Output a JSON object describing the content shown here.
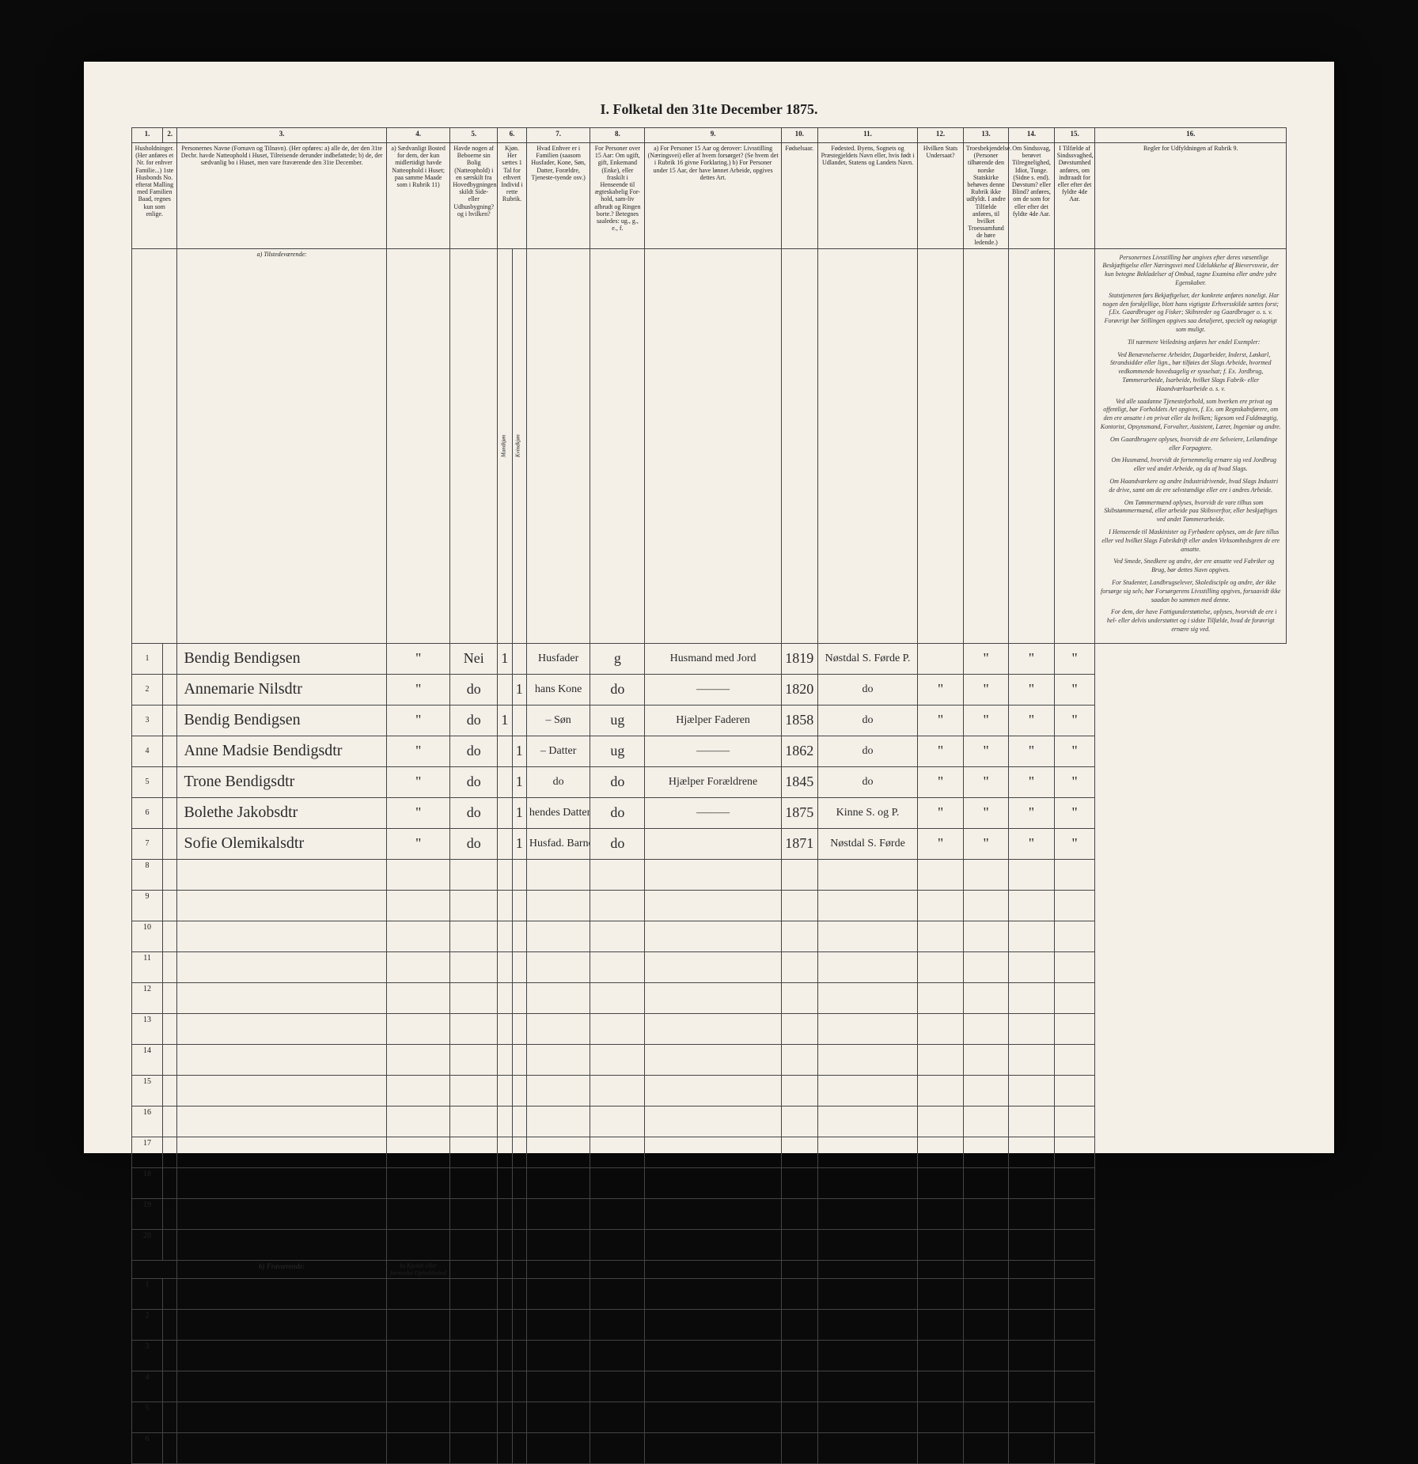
{
  "title": "I. Folketal den 31te December 1875.",
  "columns": {
    "nums": [
      "1.",
      "2.",
      "3.",
      "4.",
      "5.",
      "6.",
      "7.",
      "8.",
      "9.",
      "10.",
      "11.",
      "12.",
      "13.",
      "14.",
      "15.",
      "16."
    ],
    "heads": [
      "Husholdninger. (Her anføres et Nr. for enhver Familie...) 1ste Husbonds No. efterat Malling med Familien Baad, regnes kun som enlige.",
      "",
      "Personernes Navne (Fornavn og Tilnavn).\n(Her opføres:\na) alle de, der den 31te Decbr. havde Natteophold i Huset, Tilreisende derunder indbefattede;\nb) de, der sædvanlig bo i Huset, men vare fraværende den 31te December.",
      "a) Sædvanligt Bosted for dem, der kun midlertidigt havde Natteophold i Huset; paa samme Maade som i Rubrik 11)",
      "Havde nogen af Beboerne sin Bolig (Natteophold) i en særskilt fra Hovedbygningen skildt Side- eller Udhusbygning? og i hvilken?",
      "Kjøn. Her sættes 1 Tal for ethvert Individ i rette Rubrik.",
      "Hvad Enhver er i Familien (saasom Husfader, Kone, Søn, Datter, Forældre, Tjeneste-tyende osv.)",
      "For Personer over 15 Aar: Om ugift, gift, Enkemand (Enke), eller fraskilt i Henseende til ægteskabelig For-hold, sam-liv afbrudt og Ringen borte.?\nBetegnes saaledes: ug., g., e., f.",
      "a) For Personer 15 Aar og derover: Livsstilling (Næringsvei) eller af hvem forsørget? (Se hvem det i Rubrik 16 givne Forklaring.)\nb) For Personer under 15 Aar, der have lønnet Arbeide, opgives dettes Art.",
      "Fødselsaar.",
      "Fødested.\nByens, Sognets og Præstegjeldets Navn eller, hvis født i Udlandet, Statens og Landets Navn.",
      "Hvilken Stats Undersaat?",
      "Troesbekjendelse. (Personer tilhørende den norske Statskirke behøves denne Rubrik ikke udfyldt. I andre Tilfælde anføres, til hvilket Troessamfund de høre ledende.)",
      "Om Sindssvag, berøvet Tilregnelighed, Idiot, Tunge. (Sidne s. end). Døvstum? eller Blind? anføres, om de som for eller efter det fyldte 4de Aar.",
      "I Tilfælde af Sindssvaghed, Døvstumhed anføres, om indtraadt for eller efter det fyldte 4de Aar.",
      "Regler for Udfyldningen af Rubrik 9."
    ],
    "sub6": [
      "Mandkjøn",
      "Kvindkjøn"
    ]
  },
  "section_a": "a) Tilstedeværende:",
  "section_b": "b) Fraværende:",
  "section_b_col4": "b) Kjendt eller formodet Opholdssted",
  "rows": [
    {
      "n": "1",
      "name": "Bendig Bendigsen",
      "c4": "\"",
      "c5": "Nei",
      "m": "1",
      "k": "",
      "c7": "Husfader",
      "c8": "g",
      "c9": "Husmand med Jord",
      "c10": "1819",
      "c11": "Nøstdal S. Førde P.",
      "c12": "",
      "c13": "\"",
      "c14": "\"",
      "c15": "\""
    },
    {
      "n": "2",
      "name": "Annemarie Nilsdtr",
      "c4": "\"",
      "c5": "do",
      "m": "",
      "k": "1",
      "c7": "hans Kone",
      "c8": "do",
      "c9": "———",
      "c10": "1820",
      "c11": "do",
      "c12": "\"",
      "c13": "\"",
      "c14": "\"",
      "c15": "\""
    },
    {
      "n": "3",
      "name": "Bendig Bendigsen",
      "c4": "\"",
      "c5": "do",
      "m": "1",
      "k": "",
      "c7": "– Søn",
      "c8": "ug",
      "c9": "Hjælper Faderen",
      "c10": "1858",
      "c11": "do",
      "c12": "\"",
      "c13": "\"",
      "c14": "\"",
      "c15": "\""
    },
    {
      "n": "4",
      "name": "Anne Madsie Bendigsdtr",
      "c4": "\"",
      "c5": "do",
      "m": "",
      "k": "1",
      "c7": "– Datter",
      "c8": "ug",
      "c9": "———",
      "c10": "1862",
      "c11": "do",
      "c12": "\"",
      "c13": "\"",
      "c14": "\"",
      "c15": "\""
    },
    {
      "n": "5",
      "name": "Trone Bendigsdtr",
      "c4": "\"",
      "c5": "do",
      "m": "",
      "k": "1",
      "c7": "do",
      "c8": "do",
      "c9": "Hjælper Forældrene",
      "c10": "1845",
      "c11": "do",
      "c12": "\"",
      "c13": "\"",
      "c14": "\"",
      "c15": "\""
    },
    {
      "n": "6",
      "name": "Bolethe Jakobsdtr",
      "c4": "\"",
      "c5": "do",
      "m": "",
      "k": "1",
      "c7": "hendes Datter udenfor Ægtesk.",
      "c8": "do",
      "c9": "———",
      "c10": "1875",
      "c11": "Kinne S. og P.",
      "c12": "\"",
      "c13": "\"",
      "c14": "\"",
      "c15": "\""
    },
    {
      "n": "7",
      "name": "Sofie Olemikalsdtr",
      "c4": "\"",
      "c5": "do",
      "m": "",
      "k": "1",
      "c7": "Husfad. Barnebarn",
      "c8": "do",
      "c9": "",
      "c10": "1871",
      "c11": "Nøstdal S. Førde",
      "c12": "\"",
      "c13": "\"",
      "c14": "\"",
      "c15": "\""
    }
  ],
  "empty_a": [
    "8",
    "9",
    "10",
    "11",
    "12",
    "13",
    "14",
    "15",
    "16",
    "17",
    "18",
    "19",
    "20"
  ],
  "empty_b": [
    "1",
    "2",
    "3",
    "4",
    "5",
    "6"
  ],
  "rules": [
    "Personernes Livsstilling bør angives efter deres væsentlige Beskjæftigelse eller Næringsvei med Udelukkelse af Bievervsveie, der kun betegne Bekladelser af Ombud, tagne Examina eller andre ydre Egenskaber.",
    "Statstjeneren førs Bekjæftgelser, der konkrete anføres noneligt. Har nogen den forskjellige, blott hans vigtigste Erhversskilde sættes forst; f.Ex. Gaardbruger og Fisker; Skibsreder og Gaardbruger o. s. v. Forøvrigt bør Stillingen opgives saa detaljeret, specielt og nøiagtigt som muligt.",
    "Til nærmere Veiledning anføres her endel Exempler:",
    "Ved Benævnelserne Arbeider, Dagarbeider, Inderst, Løskarl, Strandsidder eller lign., bør tilføies det Slags Arbeide, hvormed vedkommende hovedsagelig er sysselsat; f. Ex. Jordbrug, Tømmerarbeide, Isarbeide, hvilket Slags Fabrik- eller Haandværksarbeide o. s. v.",
    "Ved alle saadanne Tjenesteforhold, som hverken ere privat og offentligt, bør Forholdets Art opgives, f. Ex. om Regnskabsførere, om den ere ansatte i en privat eller da hvilken; ligesom ved Fuldmægtig, Kontorist, Opsynsmand, Forvalter, Assistent, Lærer, Ingeniør og andre.",
    "Om Gaardbrugere oplyses, hvorvidt de ere Selveiere, Leilændinge eller Forpagtere.",
    "Om Husmænd, hvorvidt de fornemmelig ernære sig ved Jordbrug eller ved andet Arbeide, og da af hvad Slags.",
    "Om Haandværkere og andre Industridrivende, hvad Slags Industri de drive, samt om de ere selvstændige eller ere i andres Arbeide.",
    "Om Tømmermænd oplyses, hvorvidt de vare tilhus som Skibstømmermænd, eller arbeide paa Skibsverftor, eller beskjæftiges ved andet Tømmerarbeide.",
    "I Henseende til Maskinister og Fyrbødere oplyses, om de fare tillus eller ved hvilket Slags Fabrikdrift eller anden Virksomhedsgren de ere ansatte.",
    "Ved Smede, Snedkere og andre, der ere ansatte ved Fabriker og Brug, bør dettes Navn opgives.",
    "For Studenter, Landbrugselever, Skoledisciple og andre, der ikke forsørge sig selv, bør Forsørgerens Livsstilling opgives, forsaavidt ikke saadan bo sammen med denne.",
    "For dem, der have Fattigunderstøttelse, oplyses, hvorvidt de ere i hel- eller delvis understøttet og i sidste Tilfælde, hvad de forøvrigt ernære sig ved."
  ],
  "colors": {
    "paper": "#f4f0e8",
    "border": "#444444",
    "text": "#222222",
    "frame": "#0a0a0a"
  }
}
